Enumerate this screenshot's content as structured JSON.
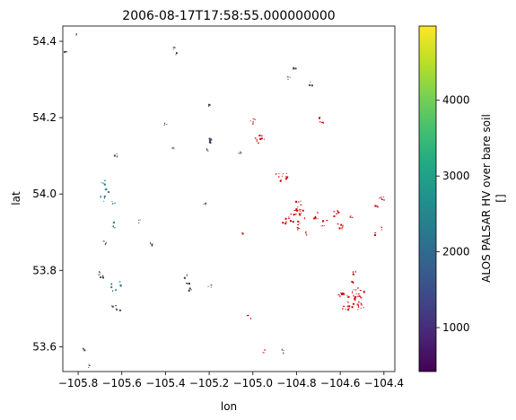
{
  "chart_data": {
    "type": "heatmap",
    "title": "2006-08-17T17:58:55.000000000",
    "xlabel": "lon",
    "ylabel": "lat",
    "xlim": [
      -105.87,
      -104.35
    ],
    "ylim": [
      53.535,
      54.44
    ],
    "xticks": [
      -105.8,
      -105.6,
      -105.4,
      -105.2,
      -105.0,
      -104.8,
      -104.6,
      -104.4
    ],
    "xtick_labels": [
      "−105.8",
      "−105.6",
      "−105.4",
      "−105.2",
      "−105.0",
      "−104.8",
      "−104.6",
      "−104.4"
    ],
    "yticks": [
      53.6,
      53.8,
      54.0,
      54.2,
      54.4
    ],
    "ytick_labels": [
      "53.6",
      "53.8",
      "54.0",
      "54.2",
      "54.4"
    ],
    "grid": false,
    "colorbar": {
      "label": "ALOS PALSAR HV over bare soil",
      "unit_label": "[]",
      "colormap": "viridis",
      "range": [
        420,
        4980
      ],
      "ticks": [
        1000,
        2000,
        3000,
        4000
      ],
      "tick_labels": [
        "1000",
        "2000",
        "3000",
        "4000"
      ]
    },
    "colors": {
      "red_patches": "#cc0000",
      "teal_pixels": "#2a788e",
      "dark_pixels": "#3b3b4f"
    },
    "clusters": [
      {
        "color": "teal",
        "lon": -105.81,
        "lat": 54.42,
        "size": 1
      },
      {
        "color": "dark",
        "lon": -105.86,
        "lat": 54.37,
        "size": 1
      },
      {
        "color": "dark",
        "lon": -105.36,
        "lat": 54.385,
        "size": 1
      },
      {
        "color": "dark",
        "lon": -105.35,
        "lat": 54.37,
        "size": 1
      },
      {
        "color": "dark",
        "lon": -104.81,
        "lat": 54.33,
        "size": 1
      },
      {
        "color": "dark",
        "lon": -104.84,
        "lat": 54.305,
        "size": 1
      },
      {
        "color": "dark",
        "lon": -104.74,
        "lat": 54.29,
        "size": 1
      },
      {
        "color": "dark",
        "lon": -105.2,
        "lat": 54.235,
        "size": 1
      },
      {
        "color": "red",
        "lon": -104.685,
        "lat": 54.195,
        "size": 2
      },
      {
        "color": "red",
        "lon": -105.0,
        "lat": 54.19,
        "size": 2
      },
      {
        "color": "dark",
        "lon": -105.4,
        "lat": 54.185,
        "size": 1
      },
      {
        "color": "dark",
        "lon": -105.2,
        "lat": 54.145,
        "size": 2
      },
      {
        "color": "red",
        "lon": -104.97,
        "lat": 54.145,
        "size": 3
      },
      {
        "color": "dark",
        "lon": -105.37,
        "lat": 54.12,
        "size": 1
      },
      {
        "color": "dark",
        "lon": -105.21,
        "lat": 54.115,
        "size": 1
      },
      {
        "color": "dark",
        "lon": -105.06,
        "lat": 54.11,
        "size": 1
      },
      {
        "color": "dark",
        "lon": -105.63,
        "lat": 54.105,
        "size": 1
      },
      {
        "color": "red",
        "lon": -104.87,
        "lat": 54.05,
        "size": 4
      },
      {
        "color": "teal",
        "lon": -105.68,
        "lat": 54.03,
        "size": 2
      },
      {
        "color": "teal",
        "lon": -105.67,
        "lat": 54.01,
        "size": 1
      },
      {
        "color": "teal",
        "lon": -105.685,
        "lat": 53.99,
        "size": 2
      },
      {
        "color": "teal",
        "lon": -105.64,
        "lat": 53.98,
        "size": 1
      },
      {
        "color": "dark",
        "lon": -105.22,
        "lat": 53.975,
        "size": 1
      },
      {
        "color": "red",
        "lon": -104.41,
        "lat": 53.99,
        "size": 2
      },
      {
        "color": "red",
        "lon": -104.44,
        "lat": 53.97,
        "size": 1
      },
      {
        "color": "red",
        "lon": -104.79,
        "lat": 53.97,
        "size": 3
      },
      {
        "color": "red",
        "lon": -104.82,
        "lat": 53.94,
        "size": 5
      },
      {
        "color": "red",
        "lon": -104.78,
        "lat": 53.95,
        "size": 3
      },
      {
        "color": "red",
        "lon": -104.72,
        "lat": 53.945,
        "size": 2
      },
      {
        "color": "red",
        "lon": -104.62,
        "lat": 53.95,
        "size": 2
      },
      {
        "color": "red",
        "lon": -104.55,
        "lat": 53.94,
        "size": 1
      },
      {
        "color": "red",
        "lon": -104.68,
        "lat": 53.925,
        "size": 2
      },
      {
        "color": "red",
        "lon": -104.6,
        "lat": 53.92,
        "size": 2
      },
      {
        "color": "red",
        "lon": -104.86,
        "lat": 53.925,
        "size": 1
      },
      {
        "color": "red",
        "lon": -104.8,
        "lat": 53.91,
        "size": 1
      },
      {
        "color": "red",
        "lon": -104.76,
        "lat": 53.9,
        "size": 1
      },
      {
        "color": "red",
        "lon": -104.42,
        "lat": 53.91,
        "size": 1
      },
      {
        "color": "red",
        "lon": -104.44,
        "lat": 53.895,
        "size": 1
      },
      {
        "color": "dark",
        "lon": -105.52,
        "lat": 53.93,
        "size": 1
      },
      {
        "color": "teal",
        "lon": -105.64,
        "lat": 53.93,
        "size": 1
      },
      {
        "color": "teal",
        "lon": -105.64,
        "lat": 53.915,
        "size": 1
      },
      {
        "color": "red",
        "lon": -105.05,
        "lat": 53.9,
        "size": 1
      },
      {
        "color": "dark",
        "lon": -105.68,
        "lat": 53.875,
        "size": 1
      },
      {
        "color": "dark",
        "lon": -105.47,
        "lat": 53.87,
        "size": 1
      },
      {
        "color": "dark",
        "lon": -105.7,
        "lat": 53.79,
        "size": 2
      },
      {
        "color": "teal",
        "lon": -105.63,
        "lat": 53.76,
        "size": 3
      },
      {
        "color": "dark",
        "lon": -105.31,
        "lat": 53.785,
        "size": 1
      },
      {
        "color": "dark",
        "lon": -105.3,
        "lat": 53.77,
        "size": 1
      },
      {
        "color": "dark",
        "lon": -105.29,
        "lat": 53.75,
        "size": 1
      },
      {
        "color": "dark",
        "lon": -105.2,
        "lat": 53.76,
        "size": 1
      },
      {
        "color": "red",
        "lon": -104.54,
        "lat": 53.795,
        "size": 1
      },
      {
        "color": "red",
        "lon": -104.55,
        "lat": 53.77,
        "size": 1
      },
      {
        "color": "red",
        "lon": -104.6,
        "lat": 53.735,
        "size": 2
      },
      {
        "color": "red",
        "lon": -104.52,
        "lat": 53.74,
        "size": 4
      },
      {
        "color": "red",
        "lon": -104.54,
        "lat": 53.72,
        "size": 5
      },
      {
        "color": "red",
        "lon": -104.57,
        "lat": 53.71,
        "size": 3
      },
      {
        "color": "red",
        "lon": -104.51,
        "lat": 53.705,
        "size": 2
      },
      {
        "color": "dark",
        "lon": -105.64,
        "lat": 53.705,
        "size": 1
      },
      {
        "color": "dark",
        "lon": -105.62,
        "lat": 53.7,
        "size": 1
      },
      {
        "color": "red",
        "lon": -105.02,
        "lat": 53.68,
        "size": 1
      },
      {
        "color": "red",
        "lon": -104.95,
        "lat": 53.59,
        "size": 1
      },
      {
        "color": "dark",
        "lon": -105.78,
        "lat": 53.595,
        "size": 1
      },
      {
        "color": "dark",
        "lon": -104.86,
        "lat": 53.59,
        "size": 1
      },
      {
        "color": "dark",
        "lon": -105.76,
        "lat": 53.55,
        "size": 1
      }
    ]
  }
}
